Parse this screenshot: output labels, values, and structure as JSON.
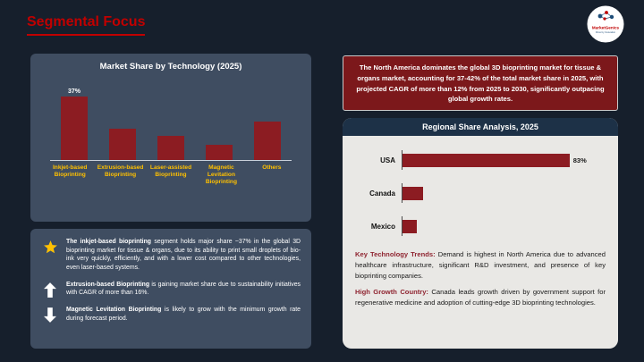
{
  "header": {
    "title": "Segmental Focus",
    "logo": {
      "brand": "MarketGenics",
      "tagline": "Drive by Innovation"
    }
  },
  "chart_data": [
    {
      "type": "bar",
      "title": "Market Share by Technology (2025)",
      "categories": [
        "Inkjet-based Bioprinting",
        "Extrusion-based Bioprinting",
        "Laser-assisted Bioprinting",
        "Magnetic Levitation Bioprinting",
        "Others"
      ],
      "values": [
        37,
        18,
        14,
        9,
        22
      ],
      "data_labels": [
        "37%",
        "",
        "",
        "",
        ""
      ],
      "ylim": [
        0,
        45
      ],
      "bar_color": "#8c1c22",
      "label_color": "#ffc000",
      "legend": "none",
      "grid": false
    },
    {
      "type": "bar-horizontal",
      "title": "Regional Share Analysis, 2025",
      "categories": [
        "USA",
        "Canada",
        "Mexico"
      ],
      "values": [
        83,
        10,
        7
      ],
      "data_labels": [
        "83%",
        "",
        ""
      ],
      "xlim": [
        0,
        100
      ],
      "bar_color": "#8c1c22",
      "legend": "none",
      "grid": false
    }
  ],
  "callout": "The North America dominates the global 3D bioprinting market for tissue & organs market, accounting for 37-42% of the total market share in 2025, with projected CAGR of more than 12% from 2025 to 2030, significantly outpacing global growth rates.",
  "insights": [
    {
      "icon": "star",
      "lead": "The inkjet-based bioprinting",
      "text": " segment holds major share ~37% in the global 3D bioprinting market for tissue & organs, due to its ability to print small droplets of bio-ink very quickly, efficiently, and with a lower cost compared to other technologies, even laser-based systems."
    },
    {
      "icon": "arrow-up",
      "lead": "Extrusion-based Bioprinting",
      "text": " is gaining market share due to sustainability initiatives with CAGR of more than 16%."
    },
    {
      "icon": "arrow-down",
      "lead": "Magnetic Levitation Bioprinting",
      "text": " is likely to grow with the minimum growth rate during forecast period."
    }
  ],
  "regional_notes": [
    {
      "lead": "Key Technology Trends:",
      "text": " Demand is highest in North America due to advanced healthcare infrastructure, significant R&D investment, and presence of key bioprinting companies."
    },
    {
      "lead": "High Growth Country:",
      "text": " Canada leads growth driven by government support for regenerative medicine and adoption of cutting-edge 3D bioprinting technologies."
    }
  ]
}
